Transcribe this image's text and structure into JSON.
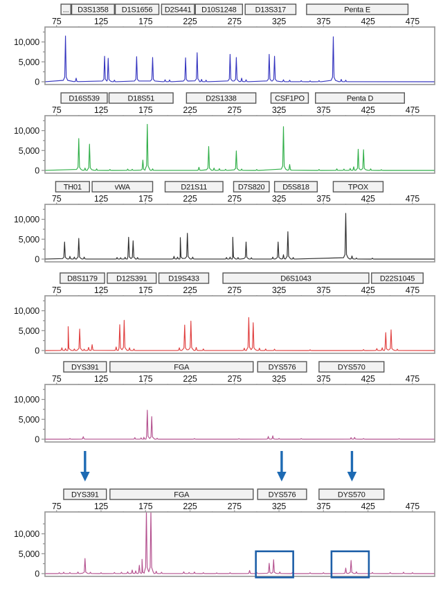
{
  "figure": {
    "kind": "STR electropherogram, 6 stacked dye-channel panels",
    "accent_blue": "#1d6ab3",
    "highlight_box_blue": "#1d5fa8"
  },
  "chart_data": {
    "type": "line",
    "title": "",
    "x_axis": {
      "range": [
        62,
        500
      ],
      "tick_values": [
        75,
        125,
        175,
        225,
        275,
        325,
        375,
        425,
        475
      ],
      "tick_labels": [
        "75",
        "125",
        "175",
        "225",
        "275",
        "325",
        "375",
        "425",
        "475"
      ],
      "minor_tick_step": 25
    },
    "y_axis": {
      "tick_values": [
        0,
        5000,
        10000
      ],
      "tick_labels": [
        "0",
        "5,000",
        "10,000"
      ],
      "minor_step": 2500,
      "range": [
        0,
        13750
      ]
    },
    "panels": [
      {
        "id": "panel-1",
        "trace_color": "#3434bf",
        "markers": [
          {
            "label": "...",
            "from_bp": 80,
            "to_bp": 91
          },
          {
            "label": "D3S1358",
            "from_bp": 92,
            "to_bp": 140
          },
          {
            "label": "D1S1656",
            "from_bp": 141,
            "to_bp": 190
          },
          {
            "label": "D2S441",
            "from_bp": 193,
            "to_bp": 230
          },
          {
            "label": "D10S1248",
            "from_bp": 231,
            "to_bp": 284
          },
          {
            "label": "D13S317",
            "from_bp": 287,
            "to_bp": 344
          },
          {
            "label": "Penta E",
            "from_bp": 356,
            "to_bp": 470
          }
        ],
        "peaks": [
          [
            85,
            11500
          ],
          [
            97,
            900
          ],
          [
            129,
            6400
          ],
          [
            133,
            5900
          ],
          [
            140,
            400
          ],
          [
            165,
            6300
          ],
          [
            183,
            6100
          ],
          [
            197,
            500
          ],
          [
            202,
            450
          ],
          [
            220,
            6000
          ],
          [
            233,
            7300
          ],
          [
            238,
            600
          ],
          [
            243,
            400
          ],
          [
            270,
            6900
          ],
          [
            277,
            6100
          ],
          [
            283,
            900
          ],
          [
            288,
            500
          ],
          [
            314,
            6900
          ],
          [
            320,
            6400
          ],
          [
            330,
            500
          ],
          [
            337,
            400
          ],
          [
            350,
            300
          ],
          [
            360,
            250
          ],
          [
            370,
            300
          ],
          [
            386,
            11300
          ],
          [
            395,
            600
          ],
          [
            400,
            400
          ]
        ]
      },
      {
        "id": "panel-2",
        "trace_color": "#2fae47",
        "markers": [
          {
            "label": "D16S539",
            "from_bp": 80,
            "to_bp": 132
          },
          {
            "label": "D18S51",
            "from_bp": 134,
            "to_bp": 206
          },
          {
            "label": "D2S1338",
            "from_bp": 221,
            "to_bp": 299
          },
          {
            "label": "CSF1PO",
            "from_bp": 316,
            "to_bp": 358
          },
          {
            "label": "Penta D",
            "from_bp": 366,
            "to_bp": 466
          }
        ],
        "peaks": [
          [
            100,
            8000
          ],
          [
            107,
            600
          ],
          [
            112,
            6600
          ],
          [
            120,
            400
          ],
          [
            135,
            250
          ],
          [
            155,
            350
          ],
          [
            160,
            300
          ],
          [
            172,
            2600
          ],
          [
            177,
            11600
          ],
          [
            183,
            400
          ],
          [
            235,
            800
          ],
          [
            246,
            6000
          ],
          [
            252,
            600
          ],
          [
            258,
            450
          ],
          [
            265,
            300
          ],
          [
            277,
            4900
          ],
          [
            283,
            350
          ],
          [
            300,
            250
          ],
          [
            330,
            11000
          ],
          [
            337,
            1500
          ],
          [
            370,
            250
          ],
          [
            390,
            400
          ],
          [
            398,
            350
          ],
          [
            405,
            500
          ],
          [
            409,
            900
          ],
          [
            414,
            5300
          ],
          [
            420,
            5200
          ],
          [
            428,
            400
          ],
          [
            440,
            200
          ]
        ]
      },
      {
        "id": "panel-3",
        "trace_color": "#2e2e2e",
        "markers": [
          {
            "label": "TH01",
            "from_bp": 74,
            "to_bp": 112
          },
          {
            "label": "vWA",
            "from_bp": 115,
            "to_bp": 183
          },
          {
            "label": "D21S11",
            "from_bp": 197,
            "to_bp": 262
          },
          {
            "label": "D7S820",
            "from_bp": 274,
            "to_bp": 314
          },
          {
            "label": "D5S818",
            "from_bp": 320,
            "to_bp": 368
          },
          {
            "label": "TPOX",
            "from_bp": 386,
            "to_bp": 442
          }
        ],
        "peaks": [
          [
            84,
            4300
          ],
          [
            90,
            700
          ],
          [
            95,
            500
          ],
          [
            100,
            5200
          ],
          [
            106,
            500
          ],
          [
            143,
            400
          ],
          [
            147,
            350
          ],
          [
            152,
            450
          ],
          [
            156,
            5500
          ],
          [
            161,
            4600
          ],
          [
            166,
            400
          ],
          [
            207,
            700
          ],
          [
            211,
            500
          ],
          [
            214,
            5400
          ],
          [
            222,
            6500
          ],
          [
            228,
            500
          ],
          [
            266,
            400
          ],
          [
            270,
            500
          ],
          [
            273,
            5500
          ],
          [
            279,
            400
          ],
          [
            288,
            4300
          ],
          [
            294,
            350
          ],
          [
            318,
            500
          ],
          [
            324,
            4300
          ],
          [
            330,
            1100
          ],
          [
            335,
            6900
          ],
          [
            341,
            400
          ],
          [
            400,
            11500
          ],
          [
            407,
            800
          ],
          [
            412,
            300
          ],
          [
            430,
            250
          ]
        ]
      },
      {
        "id": "panel-4",
        "trace_color": "#e04040",
        "markers": [
          {
            "label": "D8S1179",
            "from_bp": 79,
            "to_bp": 129
          },
          {
            "label": "D12S391",
            "from_bp": 132,
            "to_bp": 187
          },
          {
            "label": "D19S433",
            "from_bp": 190,
            "to_bp": 246
          },
          {
            "label": "D6S1043",
            "from_bp": 262,
            "to_bp": 426
          },
          {
            "label": "D22S1045",
            "from_bp": 429,
            "to_bp": 487
          }
        ],
        "peaks": [
          [
            81,
            700
          ],
          [
            85,
            500
          ],
          [
            88,
            6000
          ],
          [
            95,
            400
          ],
          [
            101,
            5400
          ],
          [
            106,
            350
          ],
          [
            111,
            800
          ],
          [
            115,
            1500
          ],
          [
            142,
            900
          ],
          [
            146,
            6500
          ],
          [
            151,
            7600
          ],
          [
            157,
            700
          ],
          [
            162,
            400
          ],
          [
            213,
            700
          ],
          [
            219,
            6400
          ],
          [
            226,
            7400
          ],
          [
            232,
            800
          ],
          [
            240,
            400
          ],
          [
            286,
            600
          ],
          [
            291,
            8300
          ],
          [
            296,
            7000
          ],
          [
            303,
            600
          ],
          [
            310,
            400
          ],
          [
            320,
            350
          ],
          [
            360,
            200
          ],
          [
            420,
            250
          ],
          [
            435,
            500
          ],
          [
            441,
            700
          ],
          [
            445,
            4500
          ],
          [
            451,
            5200
          ],
          [
            458,
            350
          ]
        ]
      },
      {
        "id": "panel-5",
        "trace_color": "#b4518f",
        "markers": [
          {
            "label": "DYS391",
            "from_bp": 83,
            "to_bp": 131
          },
          {
            "label": "FGA",
            "from_bp": 135,
            "to_bp": 296
          },
          {
            "label": "DYS576",
            "from_bp": 301,
            "to_bp": 356
          },
          {
            "label": "DYS570",
            "from_bp": 370,
            "to_bp": 443
          }
        ],
        "peaks": [
          [
            90,
            180
          ],
          [
            105,
            650
          ],
          [
            163,
            400
          ],
          [
            170,
            350
          ],
          [
            173,
            500
          ],
          [
            177,
            7300
          ],
          [
            182,
            5700
          ],
          [
            188,
            250
          ],
          [
            230,
            150
          ],
          [
            280,
            130
          ],
          [
            313,
            700
          ],
          [
            318,
            850
          ],
          [
            325,
            200
          ],
          [
            350,
            150
          ],
          [
            406,
            400
          ],
          [
            410,
            450
          ],
          [
            420,
            150
          ],
          [
            460,
            120
          ]
        ]
      },
      {
        "id": "panel-6",
        "trace_color": "#b4518f",
        "markers": [
          {
            "label": "DYS391",
            "from_bp": 83,
            "to_bp": 131
          },
          {
            "label": "FGA",
            "from_bp": 135,
            "to_bp": 296
          },
          {
            "label": "DYS576",
            "from_bp": 301,
            "to_bp": 356
          },
          {
            "label": "DYS570",
            "from_bp": 370,
            "to_bp": 443
          }
        ],
        "peaks": [
          [
            78,
            250
          ],
          [
            83,
            350
          ],
          [
            90,
            300
          ],
          [
            99,
            400
          ],
          [
            107,
            3800
          ],
          [
            113,
            350
          ],
          [
            125,
            250
          ],
          [
            140,
            300
          ],
          [
            148,
            350
          ],
          [
            155,
            450
          ],
          [
            160,
            900
          ],
          [
            164,
            700
          ],
          [
            168,
            2100
          ],
          [
            171,
            3600
          ],
          [
            176,
            16000
          ],
          [
            181,
            15800
          ],
          [
            187,
            600
          ],
          [
            193,
            350
          ],
          [
            218,
            450
          ],
          [
            224,
            300
          ],
          [
            230,
            400
          ],
          [
            240,
            250
          ],
          [
            255,
            200
          ],
          [
            270,
            250
          ],
          [
            292,
            800
          ],
          [
            300,
            300
          ],
          [
            314,
            2600
          ],
          [
            319,
            3500
          ],
          [
            326,
            400
          ],
          [
            340,
            250
          ],
          [
            360,
            220
          ],
          [
            375,
            250
          ],
          [
            400,
            1400
          ],
          [
            406,
            3300
          ],
          [
            412,
            450
          ],
          [
            430,
            300
          ],
          [
            450,
            280
          ],
          [
            465,
            350
          ],
          [
            475,
            250
          ]
        ]
      }
    ],
    "arrows": {
      "color": "#1d6ab3",
      "positions_bp": [
        107,
        328,
        407
      ]
    },
    "highlight_boxes": {
      "color": "#1d5fa8",
      "panel": "panel-6",
      "ranges_bp": [
        [
          299,
          341
        ],
        [
          384,
          426
        ]
      ]
    },
    "legend_position": "none",
    "grid": false
  }
}
